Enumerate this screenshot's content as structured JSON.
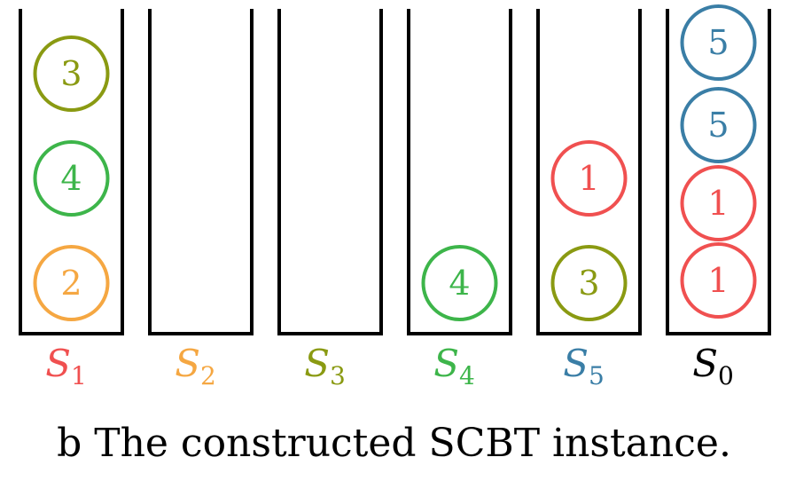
{
  "stacks": [
    {
      "name": "S",
      "sub": "1",
      "label_color": "#f05050",
      "balls": [
        {
          "value": "2",
          "color": "#f5a742"
        },
        {
          "value": "4",
          "color": "#3db54a"
        },
        {
          "value": "3",
          "color": "#8a9a12"
        }
      ]
    },
    {
      "name": "S",
      "sub": "2",
      "label_color": "#f5a742",
      "balls": []
    },
    {
      "name": "S",
      "sub": "3",
      "label_color": "#8a9a12",
      "balls": []
    },
    {
      "name": "S",
      "sub": "4",
      "label_color": "#3db54a",
      "balls": [
        {
          "value": "4",
          "color": "#3db54a"
        }
      ]
    },
    {
      "name": "S",
      "sub": "5",
      "label_color": "#3a7ea6",
      "balls": [
        {
          "value": "3",
          "color": "#8a9a12"
        },
        {
          "value": "1",
          "color": "#f05050"
        }
      ]
    },
    {
      "name": "S",
      "sub": "0",
      "label_color": "#000000",
      "balls": [
        {
          "value": "1",
          "color": "#f05050"
        },
        {
          "value": "1",
          "color": "#f05050"
        },
        {
          "value": "5",
          "color": "#3a7ea6"
        },
        {
          "value": "5",
          "color": "#3a7ea6"
        }
      ]
    }
  ],
  "caption": "b The constructed SCBT instance."
}
